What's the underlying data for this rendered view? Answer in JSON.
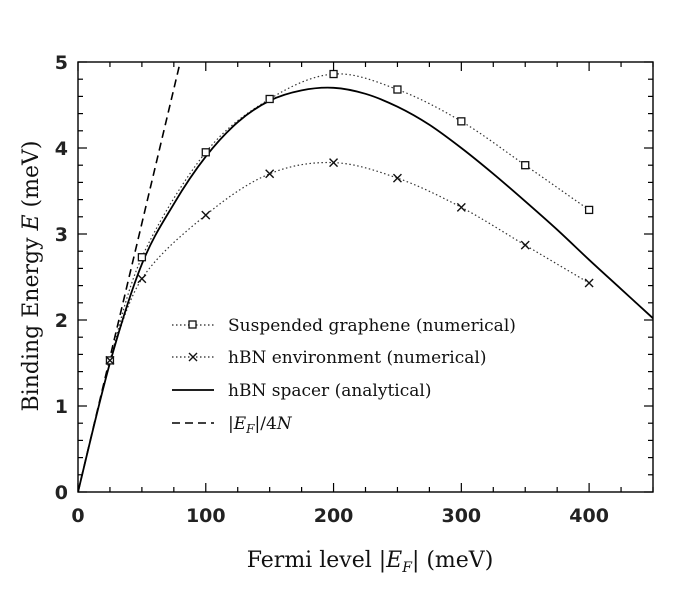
{
  "chart_data": {
    "type": "line",
    "xlabel": "Fermi level |E_F| (meV)",
    "ylabel": "Binding Energy E (meV)",
    "xlim": [
      0,
      450
    ],
    "ylim": [
      0,
      5
    ],
    "x_ticks": [
      "0",
      "100",
      "200",
      "300",
      "400"
    ],
    "y_ticks": [
      "0",
      "1",
      "2",
      "3",
      "4",
      "5"
    ],
    "grid": false,
    "legend_position": "center",
    "series": [
      {
        "name": "Suspended graphene (numerical)",
        "style": "dotted-square",
        "x": [
          25,
          50,
          100,
          150,
          200,
          250,
          300,
          350,
          400
        ],
        "y": [
          1.53,
          2.73,
          3.95,
          4.57,
          4.86,
          4.68,
          4.31,
          3.8,
          3.28
        ]
      },
      {
        "name": "hBN environment (numerical)",
        "style": "dotted-cross",
        "x": [
          25,
          50,
          100,
          150,
          200,
          250,
          300,
          350,
          400
        ],
        "y": [
          1.53,
          2.48,
          3.22,
          3.7,
          3.83,
          3.65,
          3.31,
          2.87,
          2.43
        ]
      },
      {
        "name": "hBN spacer (analytical)",
        "style": "solid",
        "x": [
          0,
          25,
          50,
          75,
          100,
          125,
          150,
          175,
          200,
          225,
          250,
          275,
          300,
          325,
          350,
          375,
          400,
          425,
          450
        ],
        "y": [
          0,
          1.5,
          2.65,
          3.35,
          3.9,
          4.3,
          4.55,
          4.67,
          4.7,
          4.63,
          4.48,
          4.27,
          4.0,
          3.7,
          3.38,
          3.05,
          2.7,
          2.36,
          2.02
        ]
      },
      {
        "name": "|E_F|/4N",
        "style": "dashed",
        "x": [
          0,
          80
        ],
        "y": [
          0,
          5
        ]
      }
    ]
  }
}
